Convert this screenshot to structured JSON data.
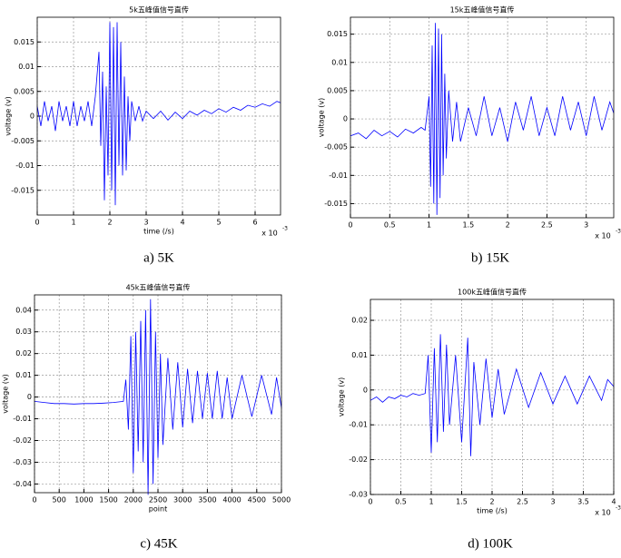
{
  "chart_data": [
    {
      "type": "line",
      "title": "5k五峰值信号直传",
      "caption": "a) 5K",
      "ylabel": "voltage (v)",
      "xlabel": "time (/s)",
      "x_scale": "x 10",
      "x_scale_exponent": "-3",
      "color": "#0000ff",
      "grid": true,
      "xlim": [
        0,
        6.7
      ],
      "ylim": [
        -0.02,
        0.02
      ],
      "xticks": [
        0,
        1,
        2,
        3,
        4,
        5,
        6
      ],
      "yticks": [
        -0.015,
        -0.01,
        -0.005,
        0,
        0.005,
        0.01,
        0.015
      ],
      "x": [
        0,
        0.1,
        0.2,
        0.3,
        0.4,
        0.5,
        0.6,
        0.7,
        0.8,
        0.9,
        1.0,
        1.1,
        1.2,
        1.3,
        1.4,
        1.5,
        1.6,
        1.7,
        1.75,
        1.8,
        1.85,
        1.9,
        1.95,
        2.0,
        2.05,
        2.1,
        2.15,
        2.2,
        2.25,
        2.3,
        2.35,
        2.4,
        2.45,
        2.5,
        2.55,
        2.6,
        2.7,
        2.8,
        2.9,
        3.0,
        3.2,
        3.4,
        3.6,
        3.8,
        4.0,
        4.2,
        4.4,
        4.6,
        4.8,
        5.0,
        5.2,
        5.4,
        5.6,
        5.8,
        6.0,
        6.2,
        6.4,
        6.6,
        6.7
      ],
      "values": [
        0.002,
        -0.002,
        0.003,
        -0.001,
        0.002,
        -0.003,
        0.003,
        -0.001,
        0.002,
        -0.002,
        0.003,
        -0.002,
        0.002,
        -0.001,
        0.003,
        -0.002,
        0.004,
        0.013,
        -0.006,
        0.009,
        -0.017,
        0.006,
        -0.012,
        0.019,
        -0.015,
        0.018,
        -0.018,
        0.019,
        -0.01,
        0.015,
        -0.012,
        0.008,
        -0.011,
        0.004,
        -0.005,
        0.003,
        -0.001,
        0.002,
        -0.001,
        0.001,
        -0.0005,
        0.001,
        -0.0008,
        0.0008,
        -0.0005,
        0.001,
        0.0002,
        0.0012,
        0.0005,
        0.0015,
        0.0008,
        0.0018,
        0.0012,
        0.0022,
        0.0018,
        0.0025,
        0.002,
        0.003,
        0.0027
      ]
    },
    {
      "type": "line",
      "title": "15k五峰值信号直传",
      "caption": "b) 15K",
      "ylabel": "voltage (v)",
      "x_scale": "x 10",
      "x_scale_exponent": "-3",
      "color": "#0000ff",
      "grid": true,
      "xlim": [
        0,
        3.35
      ],
      "ylim": [
        -0.0175,
        0.018
      ],
      "xticks": [
        0,
        0.5,
        1,
        1.5,
        2,
        2.5,
        3
      ],
      "yticks": [
        -0.015,
        -0.01,
        -0.005,
        0,
        0.005,
        0.01,
        0.015
      ],
      "x": [
        0,
        0.1,
        0.2,
        0.3,
        0.4,
        0.5,
        0.6,
        0.7,
        0.8,
        0.9,
        0.95,
        1.0,
        1.02,
        1.04,
        1.06,
        1.08,
        1.1,
        1.12,
        1.14,
        1.16,
        1.18,
        1.2,
        1.22,
        1.25,
        1.3,
        1.35,
        1.4,
        1.5,
        1.6,
        1.7,
        1.8,
        1.9,
        2.0,
        2.1,
        2.2,
        2.3,
        2.4,
        2.5,
        2.6,
        2.7,
        2.8,
        2.9,
        3.0,
        3.1,
        3.2,
        3.3,
        3.35
      ],
      "values": [
        -0.003,
        -0.0025,
        -0.0035,
        -0.002,
        -0.003,
        -0.0022,
        -0.0032,
        -0.0018,
        -0.0025,
        -0.0015,
        -0.002,
        0.004,
        -0.012,
        0.013,
        -0.015,
        0.017,
        -0.017,
        0.016,
        -0.014,
        0.015,
        -0.01,
        0.008,
        -0.007,
        0.005,
        -0.004,
        0.003,
        -0.004,
        0.002,
        -0.003,
        0.004,
        -0.003,
        0.002,
        -0.004,
        0.003,
        -0.002,
        0.004,
        -0.003,
        0.002,
        -0.003,
        0.004,
        -0.002,
        0.003,
        -0.003,
        0.004,
        -0.002,
        0.003,
        0.001
      ]
    },
    {
      "type": "line",
      "title": "45k五峰值信号直传",
      "caption": "c) 45K",
      "ylabel": "voltage (v)",
      "xlabel": "point",
      "color": "#0000ff",
      "grid": true,
      "xlim": [
        0,
        5000
      ],
      "ylim": [
        -0.044,
        0.047
      ],
      "xticks": [
        0,
        500,
        1000,
        1500,
        2000,
        2500,
        3000,
        3500,
        4000,
        4500,
        5000
      ],
      "yticks": [
        -0.04,
        -0.03,
        -0.02,
        -0.01,
        0,
        0.01,
        0.02,
        0.03,
        0.04
      ],
      "x": [
        0,
        200,
        400,
        600,
        800,
        1000,
        1200,
        1400,
        1600,
        1800,
        1850,
        1900,
        1950,
        2000,
        2050,
        2100,
        2150,
        2200,
        2250,
        2300,
        2350,
        2400,
        2450,
        2500,
        2550,
        2600,
        2700,
        2800,
        2900,
        3000,
        3100,
        3200,
        3300,
        3400,
        3500,
        3600,
        3700,
        3800,
        3900,
        4000,
        4200,
        4400,
        4600,
        4800,
        4900,
        5000
      ],
      "values": [
        -0.002,
        -0.0025,
        -0.003,
        -0.003,
        -0.0032,
        -0.003,
        -0.003,
        -0.0028,
        -0.0025,
        -0.002,
        0.008,
        -0.015,
        0.028,
        -0.035,
        0.03,
        -0.025,
        0.035,
        -0.03,
        0.04,
        -0.045,
        0.045,
        -0.04,
        0.03,
        -0.028,
        0.02,
        -0.022,
        0.018,
        -0.015,
        0.016,
        -0.014,
        0.013,
        -0.012,
        0.012,
        -0.01,
        0.011,
        -0.01,
        0.012,
        -0.01,
        0.009,
        -0.01,
        0.01,
        -0.009,
        0.01,
        -0.008,
        0.009,
        -0.005
      ]
    },
    {
      "type": "line",
      "title": "100k五峰值信号直传",
      "caption": "d) 100K",
      "ylabel": "voltage (v)",
      "xlabel": "time (/s)",
      "x_scale": "x 10",
      "x_scale_exponent": "-3",
      "color": "#0000ff",
      "grid": true,
      "xlim": [
        0,
        4
      ],
      "ylim": [
        -0.03,
        0.026
      ],
      "xticks": [
        0,
        0.5,
        1,
        1.5,
        2,
        2.5,
        3,
        3.5,
        4
      ],
      "yticks": [
        -0.03,
        -0.02,
        -0.01,
        0,
        0.01,
        0.02
      ],
      "x": [
        0,
        0.1,
        0.2,
        0.3,
        0.4,
        0.5,
        0.6,
        0.7,
        0.8,
        0.9,
        0.95,
        1.0,
        1.05,
        1.1,
        1.15,
        1.2,
        1.25,
        1.3,
        1.4,
        1.5,
        1.6,
        1.65,
        1.7,
        1.8,
        1.9,
        2.0,
        2.1,
        2.2,
        2.4,
        2.6,
        2.8,
        3.0,
        3.2,
        3.4,
        3.6,
        3.8,
        3.9,
        4.0
      ],
      "values": [
        -0.003,
        -0.002,
        -0.0035,
        -0.002,
        -0.0025,
        -0.0015,
        -0.002,
        -0.001,
        -0.0015,
        -0.001,
        0.01,
        -0.018,
        0.012,
        -0.015,
        0.016,
        -0.012,
        0.013,
        -0.01,
        0.01,
        -0.015,
        0.015,
        -0.019,
        0.008,
        -0.01,
        0.009,
        -0.008,
        0.006,
        -0.007,
        0.006,
        -0.005,
        0.005,
        -0.004,
        0.004,
        -0.004,
        0.004,
        -0.003,
        0.003,
        0.001
      ]
    }
  ]
}
